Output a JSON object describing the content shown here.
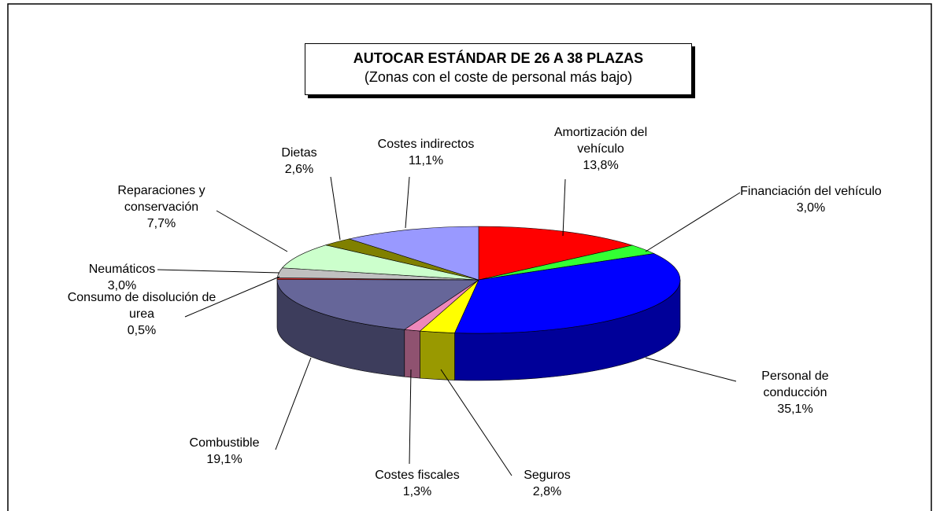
{
  "chart_data": {
    "type": "pie3d",
    "title": "AUTOCAR ESTÁNDAR DE 26 A 38 PLAZAS",
    "subtitle": "(Zonas con el coste de personal más bajo)",
    "categories": [
      "Amortización del vehículo",
      "Financiación del vehículo",
      "Personal de conducción",
      "Seguros",
      "Costes fiscales",
      "Combustible",
      "Consumo de disolución de urea",
      "Neumáticos",
      "Reparaciones y conservación",
      "Dietas",
      "Costes indirectos"
    ],
    "values": [
      13.8,
      3.0,
      35.1,
      2.8,
      1.3,
      19.1,
      0.5,
      3.0,
      7.7,
      2.6,
      11.1
    ],
    "value_labels": [
      "13,8%",
      "3,0%",
      "35,1%",
      "2,8%",
      "1,3%",
      "19,1%",
      "0,5%",
      "3,0%",
      "7,7%",
      "2,6%",
      "11,1%"
    ],
    "colors": [
      "#ff0000",
      "#33ff33",
      "#0000ff",
      "#ffff00",
      "#ee88bb",
      "#666699",
      "#cc3333",
      "#c0c0c0",
      "#ccffcc",
      "#808000",
      "#9999ff"
    ]
  }
}
